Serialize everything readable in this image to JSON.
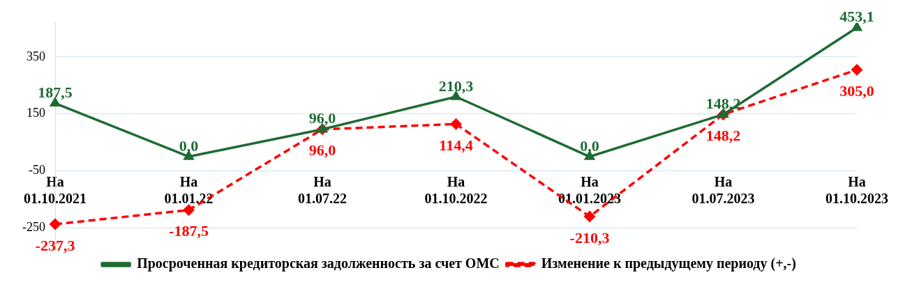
{
  "chart_data": {
    "type": "line",
    "categories": [
      "На\n01.10.2021",
      "На\n01.01.22",
      "На\n01.07.22",
      "На\n01.10.2022",
      "На\n01.01.2023",
      "На\n01.07.2023",
      "На\n01.10.2023"
    ],
    "series": [
      {
        "name": "Просроченная кредиторская задолженность за счет ОМС",
        "color": "#1e6b34",
        "values": [
          187.5,
          0,
          96,
          210.3,
          0,
          148.2,
          453.1
        ],
        "value_labels": [
          "187,5",
          "0,0",
          "96,0",
          "210,3",
          "0,0",
          "148,2",
          "453,1"
        ],
        "marker": "triangle",
        "line_style": "solid"
      },
      {
        "name": "Изменение к предыдущему периоду (+,-)",
        "color": "#ff0000",
        "values": [
          -237.3,
          -187.5,
          96,
          114.4,
          -210.3,
          148.2,
          305
        ],
        "value_labels": [
          "-237,3",
          "-187,5",
          "96,0",
          "114,4",
          "-210,3",
          "148,2",
          "305,0"
        ],
        "marker": "diamond",
        "line_style": "dashed"
      }
    ],
    "ylim": [
      -330,
      470
    ],
    "yticks": [
      -250,
      -50,
      150,
      350
    ],
    "grid": "y",
    "legend": "bottom"
  }
}
